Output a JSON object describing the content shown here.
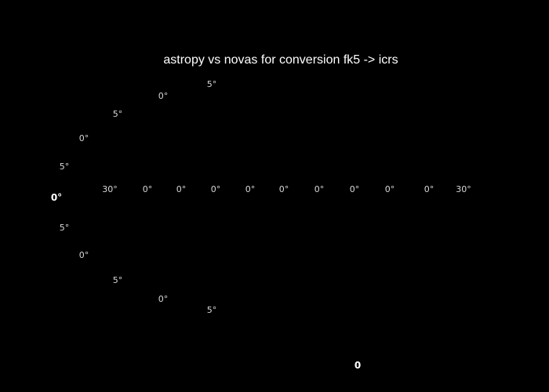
{
  "chart_data": {
    "type": "scatter",
    "title": "astropy vs novas for conversion fk5 -> icrs",
    "projection": "mollweide-like sky map",
    "longitude_tick_labels": [
      "30°",
      "0°",
      "0°",
      "0°",
      "0°",
      "0°",
      "0°",
      "0°",
      "0°",
      "0°",
      "30°"
    ],
    "latitude_tick_labels_upper": [
      "5°",
      "0°",
      "5°",
      "0°",
      "5°"
    ],
    "latitude_tick_labels_lower": [
      "5°",
      "0°",
      "5°",
      "0°",
      "5°"
    ],
    "equator_label": "0°",
    "colorbar_tick_labels": [
      "",
      "",
      "",
      "0"
    ],
    "colorbar_label": "",
    "series": []
  }
}
